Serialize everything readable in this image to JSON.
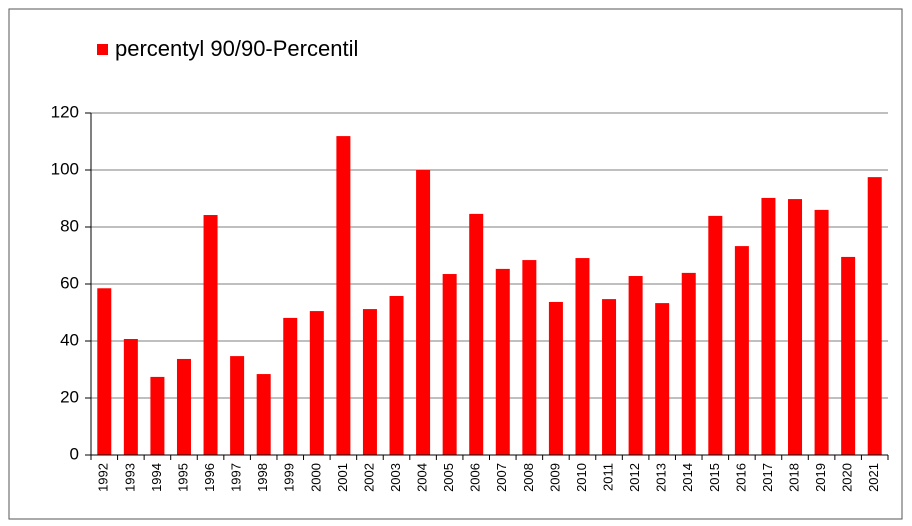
{
  "chart_data": {
    "type": "bar",
    "legend": "percentyl 90/90-Percentil",
    "legend_position": "top-left",
    "categories": [
      "1992",
      "1993",
      "1994",
      "1995",
      "1996",
      "1997",
      "1998",
      "1999",
      "2000",
      "2001",
      "2002",
      "2003",
      "2004",
      "2005",
      "2006",
      "2007",
      "2008",
      "2009",
      "2010",
      "2011",
      "2012",
      "2013",
      "2014",
      "2015",
      "2016",
      "2017",
      "2018",
      "2019",
      "2020",
      "2021"
    ],
    "values": [
      58.5,
      40.7,
      27.4,
      33.7,
      84.2,
      34.7,
      28.4,
      48.1,
      50.5,
      111.9,
      51.2,
      55.8,
      100,
      63.5,
      84.6,
      65.3,
      68.4,
      53.7,
      69.1,
      54.7,
      62.8,
      53.3,
      63.9,
      83.9,
      73.3,
      90.2,
      89.8,
      86,
      69.5,
      97.5
    ],
    "color": "#ff0000",
    "ylim": [
      0,
      120
    ],
    "yticks": [
      0,
      20,
      40,
      60,
      80,
      100,
      120
    ],
    "grid": true
  }
}
